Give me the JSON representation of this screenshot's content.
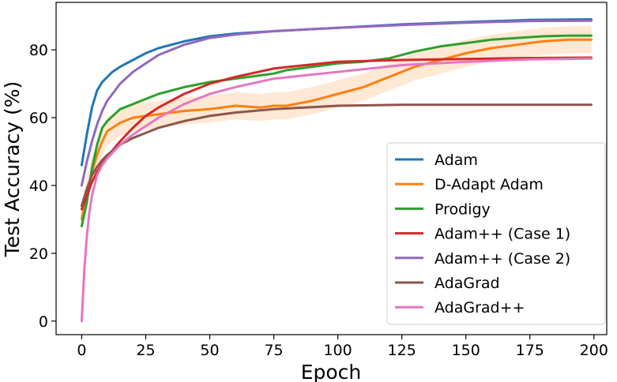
{
  "chart_data": {
    "type": "line",
    "title": "",
    "xlabel": "Epoch",
    "ylabel": "Test Accuracy (%)",
    "xlim": [
      -10,
      205
    ],
    "ylim": [
      -4,
      94
    ],
    "xticks": [
      0,
      25,
      50,
      75,
      100,
      125,
      150,
      175,
      200
    ],
    "yticks": [
      0,
      20,
      40,
      60,
      80
    ],
    "grid": false,
    "legend_position": "lower-right",
    "series": [
      {
        "name": "Adam",
        "color": "#1f77b4",
        "x": [
          0,
          2,
          4,
          6,
          8,
          10,
          12,
          15,
          20,
          25,
          30,
          35,
          40,
          50,
          60,
          75,
          100,
          125,
          150,
          175,
          199
        ],
        "y": [
          46,
          55,
          63,
          68,
          70.5,
          72,
          73.5,
          75,
          77,
          79,
          80.5,
          81.5,
          82.5,
          84,
          84.8,
          85.5,
          86.5,
          87.5,
          88.2,
          88.8,
          89
        ]
      },
      {
        "name": "D-Adapt Adam",
        "color": "#ff7f0e",
        "band": true,
        "x": [
          0,
          2,
          4,
          6,
          8,
          10,
          15,
          20,
          25,
          30,
          40,
          50,
          60,
          70,
          75,
          80,
          90,
          100,
          110,
          120,
          130,
          140,
          150,
          160,
          170,
          180,
          190,
          199
        ],
        "y": [
          30,
          38,
          44,
          49,
          53,
          56,
          58.5,
          60,
          60.5,
          61,
          62,
          62.5,
          63.5,
          63,
          63.5,
          63.5,
          65,
          67,
          69,
          72,
          75,
          77,
          79,
          80.5,
          81.5,
          82.5,
          83,
          83
        ]
      },
      {
        "name": "Prodigy",
        "color": "#2ca02c",
        "x": [
          0,
          2,
          4,
          6,
          8,
          10,
          15,
          20,
          25,
          30,
          40,
          50,
          60,
          70,
          75,
          80,
          90,
          100,
          110,
          120,
          130,
          140,
          150,
          160,
          170,
          180,
          190,
          199
        ],
        "y": [
          28,
          35,
          45,
          52,
          57,
          59,
          62.5,
          64,
          65.5,
          67,
          69,
          70.5,
          71.5,
          72.5,
          73,
          74,
          75,
          76,
          76.5,
          77.5,
          79.5,
          81,
          82,
          83,
          83.5,
          84,
          84.2,
          84.2
        ]
      },
      {
        "name": "Adam++ (Case 1)",
        "color": "#d62728",
        "x": [
          0,
          2,
          4,
          6,
          8,
          10,
          15,
          20,
          25,
          30,
          40,
          50,
          60,
          75,
          100,
          125,
          150,
          175,
          199
        ],
        "y": [
          33,
          37,
          41,
          44,
          46.5,
          48.5,
          53,
          57,
          60.5,
          63,
          67,
          70,
          72,
          74.5,
          76.5,
          77,
          77.3,
          77.6,
          77.7
        ]
      },
      {
        "name": "Adam++ (Case 2)",
        "color": "#9467bd",
        "x": [
          0,
          2,
          4,
          6,
          8,
          10,
          15,
          20,
          25,
          30,
          40,
          50,
          60,
          75,
          100,
          125,
          150,
          175,
          199
        ],
        "y": [
          40,
          47,
          53,
          58,
          62,
          65,
          70,
          73.5,
          76,
          78.5,
          81.5,
          83.5,
          84.5,
          85.5,
          86.5,
          87.3,
          88,
          88.5,
          88.6
        ]
      },
      {
        "name": "AdaGrad",
        "color": "#8c564b",
        "x": [
          0,
          2,
          4,
          6,
          8,
          10,
          15,
          20,
          25,
          30,
          40,
          50,
          60,
          75,
          100,
          125,
          150,
          175,
          199
        ],
        "y": [
          34,
          39,
          43,
          45.5,
          47.5,
          49,
          52,
          54,
          55.5,
          57,
          59,
          60.5,
          61.5,
          62.5,
          63.5,
          63.8,
          63.8,
          63.8,
          63.8
        ]
      },
      {
        "name": "AdaGrad++",
        "color": "#e377c2",
        "x": [
          0,
          1,
          2,
          3,
          4,
          6,
          8,
          10,
          15,
          20,
          25,
          30,
          40,
          50,
          60,
          75,
          100,
          125,
          150,
          175,
          199
        ],
        "y": [
          0,
          15,
          25,
          32,
          37,
          43,
          46,
          48,
          52,
          55,
          57.5,
          60,
          64,
          67,
          69,
          71.5,
          73.5,
          75.5,
          76.5,
          77.2,
          77.4
        ]
      }
    ]
  }
}
